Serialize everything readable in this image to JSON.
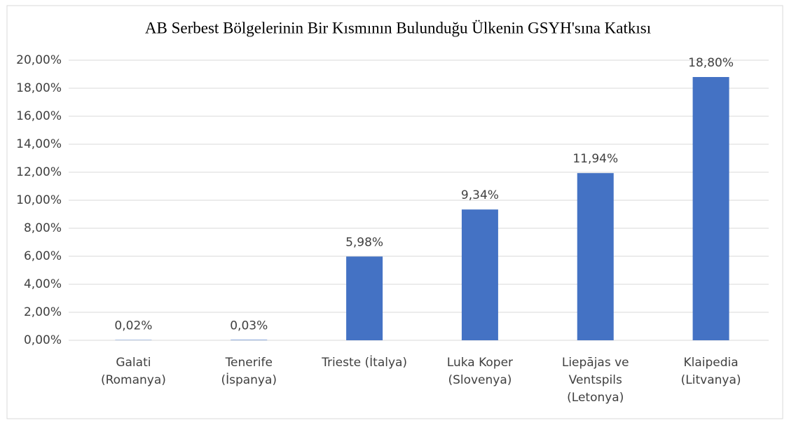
{
  "chart_data": {
    "type": "bar",
    "title": "AB Serbest Bölgelerinin Bir Kısmının Bulunduğu Ülkenin GSYH'sına Katkısı",
    "categories": [
      [
        "Galati",
        "(Romanya)"
      ],
      [
        "Tenerife",
        "(İspanya)"
      ],
      [
        "Trieste (İtalya)"
      ],
      [
        "Luka Koper",
        "(Slovenya)"
      ],
      [
        "Liepājas ve",
        "Ventspils",
        "(Letonya)"
      ],
      [
        "Klaipedia",
        "(Litvanya)"
      ]
    ],
    "values": [
      0.02,
      0.03,
      5.98,
      9.34,
      11.94,
      18.8
    ],
    "value_labels": [
      "0,02%",
      "0,03%",
      "5,98%",
      "9,34%",
      "11,94%",
      "18,80%"
    ],
    "color": "#4472c4",
    "ylim": [
      0,
      20
    ],
    "yticks": [
      {
        "value": 0,
        "label": "0,00%"
      },
      {
        "value": 2,
        "label": "2,00%"
      },
      {
        "value": 4,
        "label": "4,00%"
      },
      {
        "value": 6,
        "label": "6,00%"
      },
      {
        "value": 8,
        "label": "8,00%"
      },
      {
        "value": 10,
        "label": "10,00%"
      },
      {
        "value": 12,
        "label": "12,00%"
      },
      {
        "value": 14,
        "label": "14,00%"
      },
      {
        "value": 16,
        "label": "16,00%"
      },
      {
        "value": 18,
        "label": "18,00%"
      },
      {
        "value": 20,
        "label": "20,00%"
      }
    ],
    "grid": true
  }
}
